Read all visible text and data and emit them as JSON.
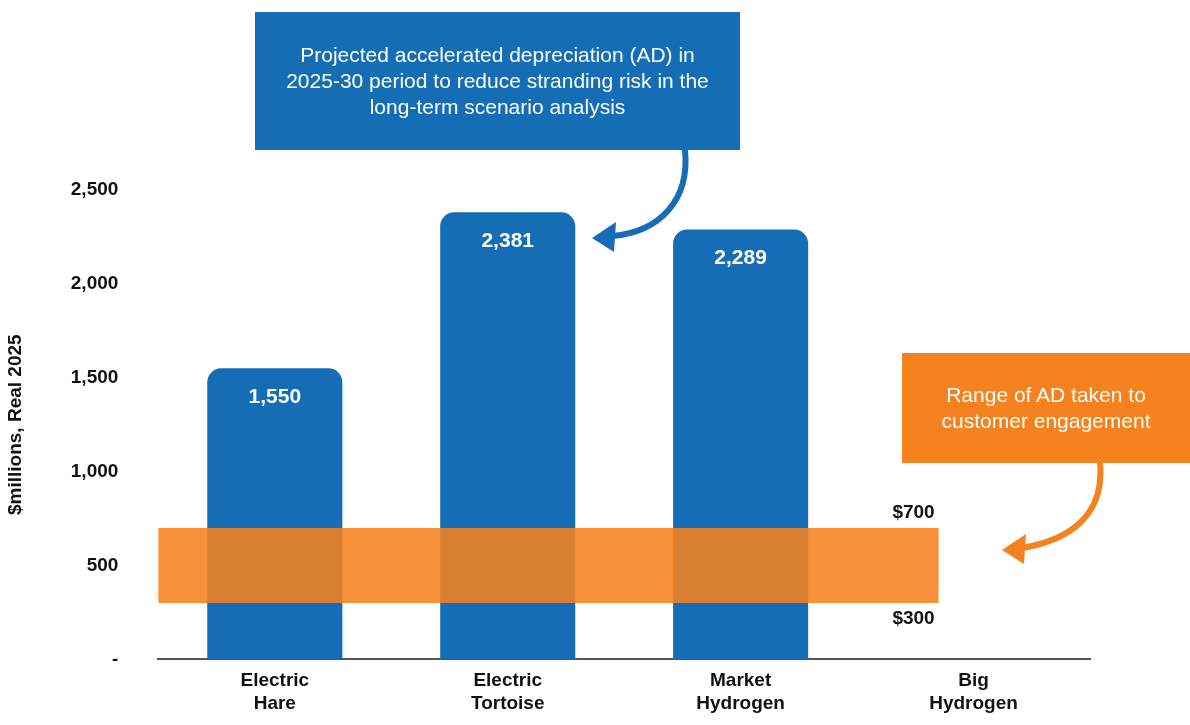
{
  "chart_data": {
    "type": "bar",
    "categories": [
      "Electric Hare",
      "Electric Tortoise",
      "Market Hydrogen",
      "Big Hydrogen"
    ],
    "values": [
      1550,
      2381,
      2289,
      null
    ],
    "value_labels": [
      "1,550",
      "2,381",
      "2,289",
      null
    ],
    "color": "#156db6",
    "ylabel": "$millions, Real 2025",
    "ylim": [
      0,
      2500
    ],
    "yticks": [
      {
        "value": 0,
        "label": "-"
      },
      500,
      {
        "value": 1000,
        "label": "1,000"
      },
      {
        "value": 1500,
        "label": "1,500"
      },
      {
        "value": 2000,
        "label": "2,000"
      },
      {
        "value": 2500,
        "label": "2,500"
      }
    ],
    "grid": false,
    "legend": false,
    "bands": [
      {
        "axis": "y",
        "from": 300,
        "to": 700,
        "color": "#f5821f"
      }
    ],
    "annotations": [
      "Projected accelerated depreciation (AD) in 2025-30 period to reduce stranding risk in the long-term scenario analysis",
      "Range of AD taken to customer engagement",
      "$700",
      "$300"
    ]
  }
}
